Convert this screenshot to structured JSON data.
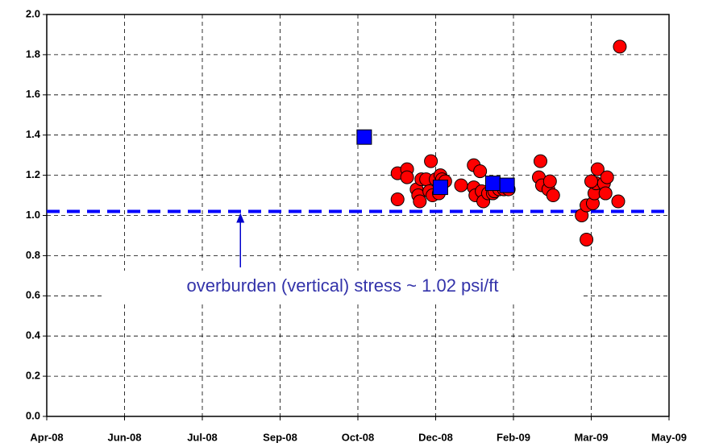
{
  "chart_data": {
    "type": "scatter",
    "xlim": [
      39540,
      39932
    ],
    "ylim": [
      0,
      2.0
    ],
    "xticks": [
      {
        "value": 39540,
        "label": "Apr-08"
      },
      {
        "value": 39589,
        "label": "Jun-08"
      },
      {
        "value": 39638,
        "label": "Jul-08"
      },
      {
        "value": 39687,
        "label": "Sep-08"
      },
      {
        "value": 39736,
        "label": "Oct-08"
      },
      {
        "value": 39785,
        "label": "Dec-08"
      },
      {
        "value": 39834,
        "label": "Feb-09"
      },
      {
        "value": 39883,
        "label": "Mar-09"
      },
      {
        "value": 39932,
        "label": "May-09"
      }
    ],
    "yticks": [
      {
        "value": 0,
        "label": "0.0"
      },
      {
        "value": 0.2,
        "label": "0.2"
      },
      {
        "value": 0.4,
        "label": "0.4"
      },
      {
        "value": 0.6,
        "label": "0.6"
      },
      {
        "value": 0.8,
        "label": "0.8"
      },
      {
        "value": 1.0,
        "label": "1.0"
      },
      {
        "value": 1.2,
        "label": "1.2"
      },
      {
        "value": 1.4,
        "label": "1.4"
      },
      {
        "value": 1.6,
        "label": "1.6"
      },
      {
        "value": 1.8,
        "label": "1.8"
      },
      {
        "value": 2.0,
        "label": "2.0"
      }
    ],
    "grid": true,
    "series": [
      {
        "color": "#ff0000",
        "marker": "circle",
        "x": [
          39761,
          39767,
          39761,
          39767,
          39773,
          39774,
          39775,
          39776,
          39779,
          39781,
          39782,
          39783,
          39785,
          39787,
          39788,
          39789,
          39791,
          39801,
          39809,
          39809,
          39810,
          39813,
          39814,
          39815,
          39818,
          39821,
          39822,
          39825,
          39828,
          39831,
          39851,
          39850,
          39852,
          39856,
          39857,
          39859,
          39877,
          39880,
          39880,
          39884,
          39885,
          39886,
          39887,
          39891,
          39892,
          39893,
          39900,
          39901,
          39883
        ],
        "values": [
          1.21,
          1.23,
          1.08,
          1.19,
          1.13,
          1.1,
          1.07,
          1.18,
          1.18,
          1.12,
          1.27,
          1.1,
          1.18,
          1.11,
          1.2,
          1.18,
          1.17,
          1.15,
          1.14,
          1.25,
          1.1,
          1.22,
          1.12,
          1.07,
          1.11,
          1.11,
          1.12,
          1.13,
          1.13,
          1.13,
          1.27,
          1.19,
          1.15,
          1.13,
          1.17,
          1.1,
          1.0,
          0.88,
          1.05,
          1.06,
          1.11,
          1.16,
          1.23,
          1.16,
          1.11,
          1.19,
          1.07,
          1.84,
          1.17
        ]
      },
      {
        "color": "#0000ff",
        "marker": "square",
        "x": [
          39740,
          39788,
          39821,
          39830
        ],
        "values": [
          1.39,
          1.14,
          1.16,
          1.15
        ]
      }
    ],
    "reference_line": {
      "y": 1.02,
      "color": "#0000ff"
    },
    "annotation": {
      "text": "overburden (vertical) stress ~ 1.02 psi/ft",
      "x": 39662
    }
  }
}
